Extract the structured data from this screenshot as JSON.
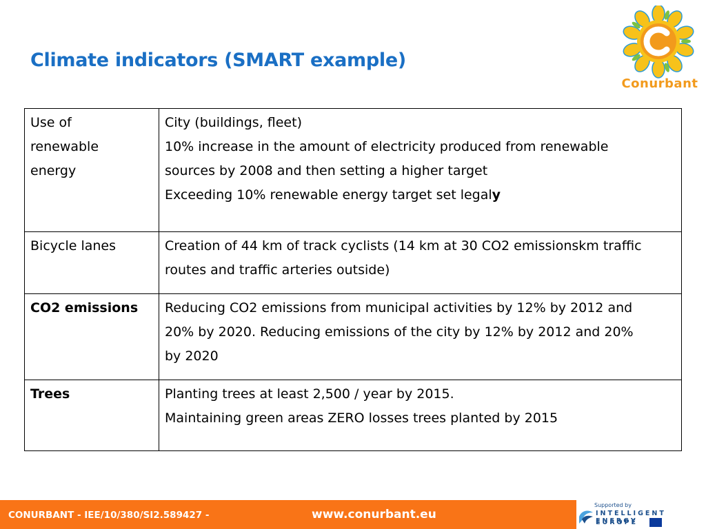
{
  "slide": {
    "title": "Climate indicators (SMART example)"
  },
  "logo": {
    "text": "Conurbant",
    "colors": {
      "outer": "#f7c21a",
      "inner": "#f29a1c",
      "petal_green": "#7cc242",
      "petal_blue": "#2a9bd6"
    }
  },
  "table": {
    "rows": [
      {
        "label": "Use of renewable energy",
        "label_lines": [
          "Use of",
          "renewable",
          "energy"
        ],
        "label_bold": false,
        "lines": [
          "City (buildings, fleet)",
          "10% increase in the amount of electricity produced from renewable",
          "sources by 2008 and then setting a higher target",
          "Exceeding 10% renewable energy target set legal"
        ],
        "last_line_bold_suffix": "y"
      },
      {
        "label": "Bicycle lanes",
        "label_bold": false,
        "lines": [
          "Creation of 44 km of track cyclists (14 km at 30 CO2 emissionskm traffic",
          "routes and traffic arteries outside)"
        ]
      },
      {
        "label": "CO2 emissions",
        "label_bold": true,
        "lines": [
          "Reducing CO2 emissions from municipal activities by 12% by 2012 and",
          "20% by 2020. Reducing emissions of the city by 12% by 2012 and 20%",
          "by 2020"
        ]
      },
      {
        "label": "Trees",
        "label_bold": true,
        "lines": [
          "Planting trees at least 2,500 / year by 2015.",
          "Maintaining green areas ZERO losses trees planted by 2015"
        ]
      }
    ]
  },
  "footer": {
    "project": "CONURBANT - IEE/10/380/SI2.589427 -",
    "url": "www.conurbant.eu",
    "background": "#f97417",
    "supported_by": "Supported by",
    "iee_line1": "INTELLIGENT ENERGY",
    "iee_line2": "EUROPE"
  }
}
